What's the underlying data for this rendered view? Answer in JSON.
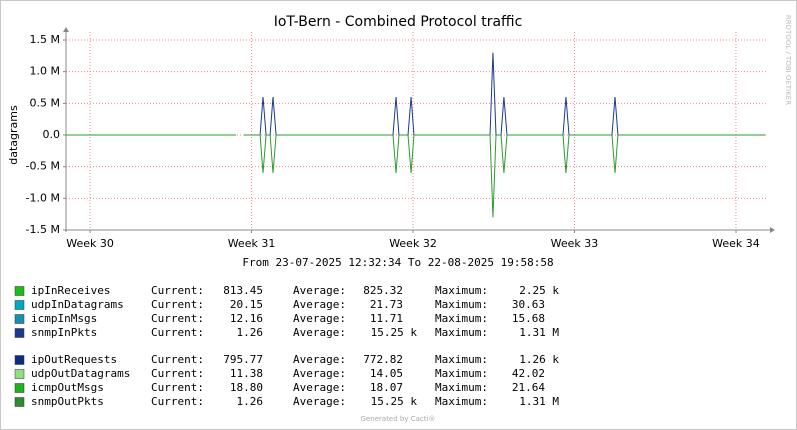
{
  "chart_data": {
    "type": "line",
    "title": "IoT-Bern - Combined Protocol traffic",
    "y_label": "datagrams",
    "x": [
      29.851,
      30.904,
      30.929,
      30.954,
      31.053,
      31.071,
      31.09,
      31.115,
      31.133,
      31.152,
      31.876,
      31.895,
      31.913,
      31.969,
      31.988,
      32.006,
      32.477,
      32.495,
      32.514,
      32.545,
      32.563,
      32.582,
      32.929,
      32.947,
      32.966,
      33.232,
      33.251,
      33.269,
      34.18
    ],
    "series": [
      {
        "color": "#1a3a8c",
        "values": [
          0,
          0,
          null,
          0,
          0,
          600000,
          0,
          0,
          600000,
          0,
          0,
          600000,
          0,
          0,
          600000,
          0,
          0,
          1300000,
          0,
          0,
          600000,
          0,
          0,
          600000,
          0,
          0,
          600000,
          0,
          0
        ]
      },
      {
        "color": "#2e9a2e",
        "values": [
          0,
          0,
          null,
          0,
          0,
          -600000,
          0,
          0,
          -600000,
          0,
          0,
          -600000,
          0,
          0,
          -600000,
          0,
          0,
          -1300000,
          0,
          0,
          -600000,
          0,
          0,
          -600000,
          0,
          0,
          -600000,
          0,
          0
        ]
      }
    ],
    "xlim": [
      29.851,
      34.186
    ],
    "ylim": [
      -1500000,
      1500000
    ],
    "xticks": [
      {
        "value": 30,
        "label": "Week 30"
      },
      {
        "value": 31,
        "label": "Week 31"
      },
      {
        "value": 32,
        "label": "Week 32"
      },
      {
        "value": 33,
        "label": "Week 33"
      },
      {
        "value": 34,
        "label": "Week 34"
      }
    ],
    "yticks": [
      {
        "value": 1500000,
        "label": "1.5 M"
      },
      {
        "value": 1000000,
        "label": "1.0 M"
      },
      {
        "value": 500000,
        "label": "0.5 M"
      },
      {
        "value": 0,
        "label": "0.0"
      },
      {
        "value": -500000,
        "label": "-0.5 M"
      },
      {
        "value": -1000000,
        "label": "-1.0 M"
      },
      {
        "value": -1500000,
        "label": "-1.5 M"
      }
    ],
    "grid": true
  },
  "period": "From 23-07-2025 12:32:34 To 22-08-2025 19:58:58",
  "legend_headers": [
    "Current:",
    "Average:",
    "Maximum:"
  ],
  "legend_groups": [
    [
      {
        "name": "ipInReceives",
        "color": "#18c018",
        "current": "813.45",
        "average": "825.32",
        "maximum": "2.25 k"
      },
      {
        "name": "udpInDatagrams",
        "color": "#00a8c0",
        "current": "20.15",
        "average": "21.73",
        "maximum": "30.63"
      },
      {
        "name": "icmpInMsgs",
        "color": "#1890b0",
        "current": "12.16",
        "average": "11.71",
        "maximum": "15.68"
      },
      {
        "name": "snmpInPkts",
        "color": "#1a3a8c",
        "current": "1.26",
        "average": "15.25 k",
        "maximum": "1.31 M"
      }
    ],
    [
      {
        "name": "ipOutRequests",
        "color": "#0c2c80",
        "current": "795.77",
        "average": "772.82",
        "maximum": "1.26 k"
      },
      {
        "name": "udpOutDatagrams",
        "color": "#90e080",
        "current": "11.38",
        "average": "14.05",
        "maximum": "42.02"
      },
      {
        "name": "icmpOutMsgs",
        "color": "#20b020",
        "current": "18.80",
        "average": "18.07",
        "maximum": "21.64"
      },
      {
        "name": "snmpOutPkts",
        "color": "#2e8b2e",
        "current": "1.26",
        "average": "15.25 k",
        "maximum": "1.31 M"
      }
    ]
  ],
  "watermark": "RRDTOOL / TOBI OETIKER",
  "credit": "Generated by Cacti®"
}
